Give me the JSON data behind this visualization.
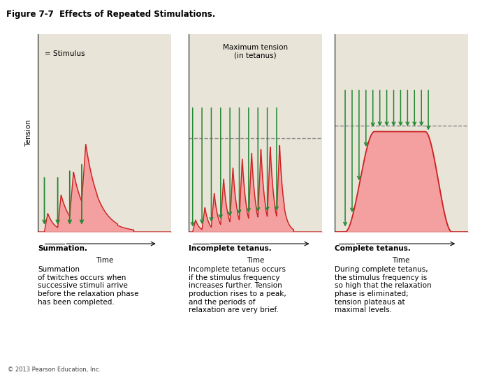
{
  "title": "Figure 7-7  Effects of Repeated Stimulations.",
  "title_color": "#000000",
  "title_bg_color": "#ff6600",
  "bg_color": "#ffffff",
  "plot_bg_color": "#e8e4d8",
  "curve_fill_color": "#f5a0a0",
  "curve_line_color": "#cc2222",
  "arrow_color": "#228833",
  "dashed_line_color": "#888888",
  "panel_a_label": "= Stimulus",
  "panel_b_label": "Maximum tension\n(in tetanus)",
  "time_label": "Time",
  "tension_label": "Tension",
  "caption_a_bold": "Summation.",
  "caption_a_text": " Summation\nof twitches occurs when\nsuccessive stimuli arrive\nbefore the relaxation phase\nhas been completed.",
  "caption_b_bold": "Incomplete tetanus.",
  "caption_b_text": "\nIncomplete tetanus occurs\nif the stimulus frequency\nincreases further. Tension\nproduction rises to a peak,\nand the periods of\nrelaxation are very brief.",
  "caption_c_bold": "Complete tetanus.",
  "caption_c_text": "\nDuring complete tetanus,\nthe stimulus frequency is\nso high that the relaxation\nphase is eliminated;\ntension plateaus at\nmaximal levels.",
  "footer": "© 2013 Pearson Education, Inc.",
  "badge_color": "#333399"
}
